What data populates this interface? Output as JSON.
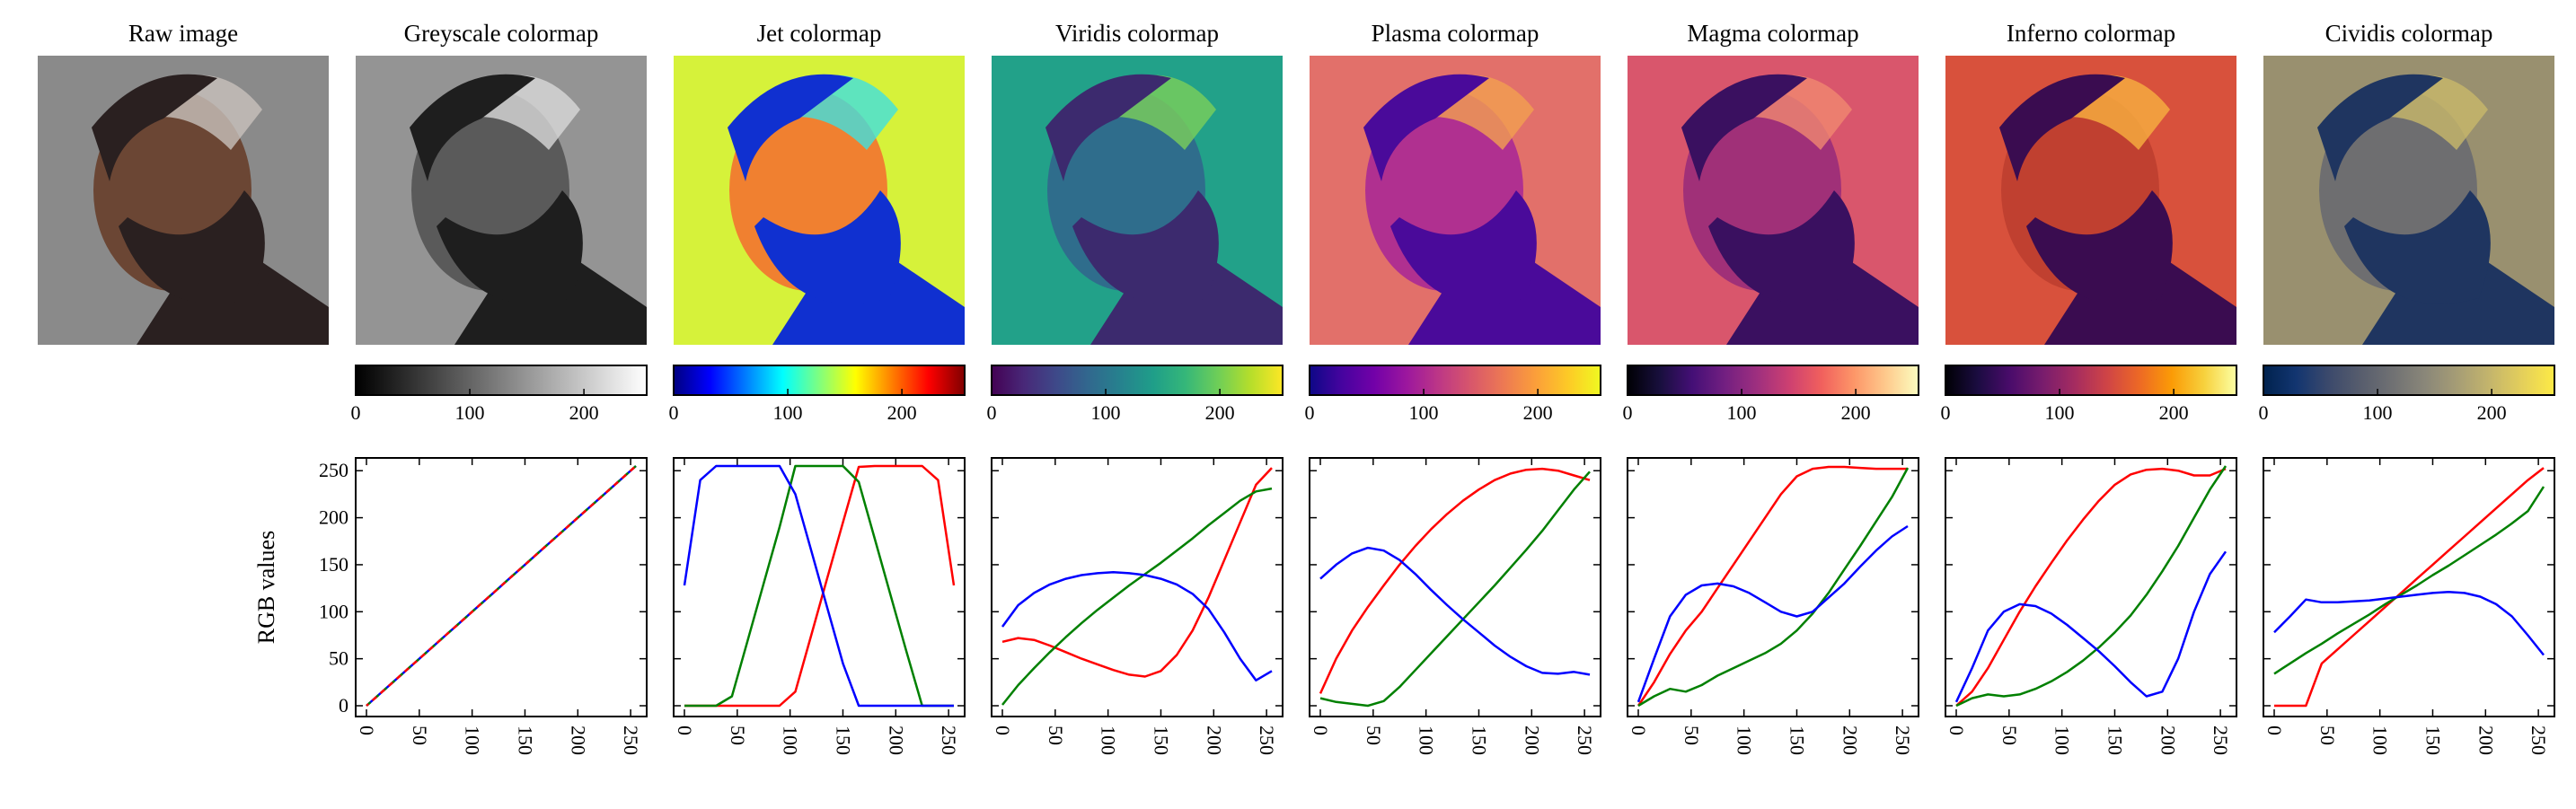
{
  "figure": {
    "ylabel": "RGB values",
    "colorbar_ticks": [
      0,
      100,
      200
    ],
    "line_x_ticks": [
      0,
      50,
      100,
      150,
      200,
      250
    ],
    "line_y_ticks": [
      0,
      50,
      100,
      150,
      200,
      250
    ]
  },
  "panels": [
    {
      "title": "Raw image",
      "kind": "raw",
      "colormap": null
    },
    {
      "title": "Greyscale colormap",
      "kind": "mapped",
      "colormap": "gray"
    },
    {
      "title": "Jet colormap",
      "kind": "mapped",
      "colormap": "jet"
    },
    {
      "title": "Viridis colormap",
      "kind": "mapped",
      "colormap": "viridis"
    },
    {
      "title": "Plasma colormap",
      "kind": "mapped",
      "colormap": "plasma"
    },
    {
      "title": "Magma colormap",
      "kind": "mapped",
      "colormap": "magma"
    },
    {
      "title": "Inferno colormap",
      "kind": "mapped",
      "colormap": "inferno"
    },
    {
      "title": "Cividis colormap",
      "kind": "mapped",
      "colormap": "cividis"
    }
  ],
  "colormap_stops": {
    "gray": [
      "#000000",
      "#ffffff"
    ],
    "jet": [
      "#00007f",
      "#0000ff",
      "#007fff",
      "#00ffff",
      "#7fff7f",
      "#ffff00",
      "#ff7f00",
      "#ff0000",
      "#7f0000"
    ],
    "viridis": [
      "#440154",
      "#482878",
      "#3e4989",
      "#31688e",
      "#26828e",
      "#1f9e89",
      "#35b779",
      "#6ece58",
      "#b5de2b",
      "#fde725"
    ],
    "plasma": [
      "#0d0887",
      "#46039f",
      "#7201a8",
      "#9c179e",
      "#bd3786",
      "#d8576b",
      "#ed7953",
      "#fb9f3a",
      "#fdca26",
      "#f0f921"
    ],
    "magma": [
      "#000004",
      "#180f3d",
      "#440f76",
      "#721f81",
      "#9e2f7f",
      "#cd4071",
      "#f1605d",
      "#fd9668",
      "#feca8d",
      "#fcfdbf"
    ],
    "inferno": [
      "#000004",
      "#1b0c41",
      "#4a0c6b",
      "#781c6d",
      "#a52c60",
      "#cf4446",
      "#ed6925",
      "#fb9b06",
      "#f7d13d",
      "#fcffa4"
    ],
    "cividis": [
      "#00224e",
      "#123570",
      "#3b496c",
      "#575d6d",
      "#707173",
      "#8a8779",
      "#a69d75",
      "#c4b56c",
      "#e4cf5b",
      "#fdea45"
    ]
  },
  "image_backgrounds": {
    "raw": "#8a8a8a",
    "gray": "#949494",
    "jet": "#d6f23a",
    "viridis": "#22a189",
    "plasma": "#e2706a",
    "magma": "#d9566c",
    "inferno": "#d8513c",
    "cividis": "#99906f"
  },
  "chart_data": [
    {
      "type": "line",
      "title": "Greyscale colormap",
      "ylabel": "RGB values",
      "xlim": [
        0,
        255
      ],
      "ylim": [
        0,
        255
      ],
      "x": [
        0,
        15,
        30,
        45,
        60,
        75,
        90,
        105,
        120,
        135,
        150,
        165,
        180,
        195,
        210,
        225,
        240,
        255
      ],
      "series": [
        {
          "color": "#ff0000",
          "values": [
            0,
            15,
            30,
            45,
            60,
            75,
            90,
            105,
            120,
            135,
            150,
            165,
            180,
            195,
            210,
            225,
            240,
            255
          ]
        },
        {
          "color": "#008000",
          "values": [
            0,
            15,
            30,
            45,
            60,
            75,
            90,
            105,
            120,
            135,
            150,
            165,
            180,
            195,
            210,
            225,
            240,
            255
          ]
        },
        {
          "color": "#0000ff",
          "values": [
            0,
            15,
            30,
            45,
            60,
            75,
            90,
            105,
            120,
            135,
            150,
            165,
            180,
            195,
            210,
            225,
            240,
            255
          ]
        }
      ]
    },
    {
      "type": "line",
      "title": "Jet colormap",
      "xlim": [
        0,
        255
      ],
      "ylim": [
        0,
        255
      ],
      "x": [
        0,
        15,
        30,
        45,
        60,
        75,
        90,
        105,
        120,
        135,
        150,
        165,
        180,
        195,
        210,
        225,
        240,
        255
      ],
      "series": [
        {
          "color": "#ff0000",
          "values": [
            0,
            0,
            0,
            0,
            0,
            0,
            0,
            15,
            75,
            135,
            195,
            254,
            255,
            255,
            255,
            255,
            240,
            128
          ]
        },
        {
          "color": "#008000",
          "values": [
            0,
            0,
            0,
            10,
            70,
            130,
            190,
            255,
            255,
            255,
            255,
            238,
            178,
            118,
            58,
            0,
            0,
            0
          ]
        },
        {
          "color": "#0000ff",
          "values": [
            128,
            240,
            255,
            255,
            255,
            255,
            255,
            225,
            165,
            105,
            45,
            0,
            0,
            0,
            0,
            0,
            0,
            0
          ]
        }
      ]
    },
    {
      "type": "line",
      "title": "Viridis colormap",
      "xlim": [
        0,
        255
      ],
      "ylim": [
        0,
        255
      ],
      "x": [
        0,
        15,
        30,
        45,
        60,
        75,
        90,
        105,
        120,
        135,
        150,
        165,
        180,
        195,
        210,
        225,
        240,
        255
      ],
      "series": [
        {
          "color": "#ff0000",
          "values": [
            68,
            72,
            70,
            64,
            57,
            50,
            44,
            38,
            33,
            31,
            37,
            54,
            80,
            115,
            155,
            195,
            235,
            253
          ]
        },
        {
          "color": "#008000",
          "values": [
            1,
            22,
            40,
            57,
            73,
            88,
            102,
            115,
            128,
            140,
            152,
            165,
            178,
            192,
            205,
            218,
            228,
            231
          ]
        },
        {
          "color": "#0000ff",
          "values": [
            84,
            107,
            120,
            129,
            135,
            139,
            141,
            142,
            141,
            139,
            135,
            129,
            119,
            103,
            78,
            50,
            27,
            37
          ]
        }
      ]
    },
    {
      "type": "line",
      "title": "Plasma colormap",
      "xlim": [
        0,
        255
      ],
      "ylim": [
        0,
        255
      ],
      "x": [
        0,
        15,
        30,
        45,
        60,
        75,
        90,
        105,
        120,
        135,
        150,
        165,
        180,
        195,
        210,
        225,
        240,
        255
      ],
      "series": [
        {
          "color": "#ff0000",
          "values": [
            13,
            50,
            80,
            105,
            128,
            150,
            170,
            188,
            204,
            218,
            230,
            240,
            247,
            251,
            252,
            250,
            245,
            240
          ]
        },
        {
          "color": "#008000",
          "values": [
            8,
            4,
            2,
            0,
            5,
            20,
            38,
            56,
            74,
            92,
            110,
            128,
            147,
            166,
            186,
            208,
            230,
            249
          ]
        },
        {
          "color": "#0000ff",
          "values": [
            135,
            150,
            162,
            168,
            165,
            155,
            140,
            123,
            107,
            92,
            78,
            64,
            52,
            42,
            35,
            34,
            36,
            33
          ]
        }
      ]
    },
    {
      "type": "line",
      "title": "Magma colormap",
      "xlim": [
        0,
        255
      ],
      "ylim": [
        0,
        255
      ],
      "x": [
        0,
        15,
        30,
        45,
        60,
        75,
        90,
        105,
        120,
        135,
        150,
        165,
        180,
        195,
        210,
        225,
        240,
        255
      ],
      "series": [
        {
          "color": "#ff0000",
          "values": [
            0,
            25,
            55,
            80,
            100,
            125,
            150,
            175,
            200,
            225,
            244,
            252,
            254,
            254,
            253,
            252,
            252,
            252
          ]
        },
        {
          "color": "#008000",
          "values": [
            0,
            10,
            18,
            15,
            22,
            32,
            40,
            48,
            56,
            66,
            80,
            98,
            120,
            145,
            170,
            196,
            222,
            253
          ]
        },
        {
          "color": "#0000ff",
          "values": [
            4,
            50,
            95,
            118,
            128,
            130,
            127,
            120,
            110,
            100,
            95,
            100,
            115,
            130,
            148,
            165,
            180,
            191
          ]
        }
      ]
    },
    {
      "type": "line",
      "title": "Inferno colormap",
      "xlim": [
        0,
        255
      ],
      "ylim": [
        0,
        255
      ],
      "x": [
        0,
        15,
        30,
        45,
        60,
        75,
        90,
        105,
        120,
        135,
        150,
        165,
        180,
        195,
        210,
        225,
        240,
        255
      ],
      "series": [
        {
          "color": "#ff0000",
          "values": [
            0,
            15,
            40,
            70,
            100,
            127,
            152,
            176,
            198,
            218,
            235,
            246,
            251,
            252,
            250,
            245,
            245,
            252
          ]
        },
        {
          "color": "#008000",
          "values": [
            0,
            8,
            12,
            10,
            12,
            18,
            26,
            36,
            48,
            62,
            78,
            96,
            118,
            143,
            170,
            200,
            230,
            255
          ]
        },
        {
          "color": "#0000ff",
          "values": [
            4,
            40,
            80,
            100,
            108,
            106,
            98,
            86,
            72,
            58,
            42,
            25,
            10,
            15,
            50,
            100,
            140,
            164
          ]
        }
      ]
    },
    {
      "type": "line",
      "title": "Cividis colormap",
      "xlim": [
        0,
        255
      ],
      "ylim": [
        0,
        255
      ],
      "x": [
        0,
        15,
        30,
        45,
        60,
        75,
        90,
        105,
        120,
        135,
        150,
        165,
        180,
        195,
        210,
        225,
        240,
        255
      ],
      "series": [
        {
          "color": "#ff0000",
          "values": [
            0,
            0,
            0,
            45,
            60,
            75,
            90,
            105,
            120,
            135,
            150,
            165,
            180,
            195,
            210,
            225,
            240,
            253
          ]
        },
        {
          "color": "#008000",
          "values": [
            34,
            45,
            56,
            66,
            77,
            87,
            97,
            108,
            118,
            128,
            139,
            149,
            160,
            171,
            182,
            194,
            207,
            233
          ]
        },
        {
          "color": "#0000ff",
          "values": [
            78,
            95,
            113,
            110,
            110,
            111,
            112,
            114,
            116,
            118,
            120,
            121,
            120,
            116,
            108,
            95,
            75,
            54
          ]
        }
      ]
    }
  ]
}
